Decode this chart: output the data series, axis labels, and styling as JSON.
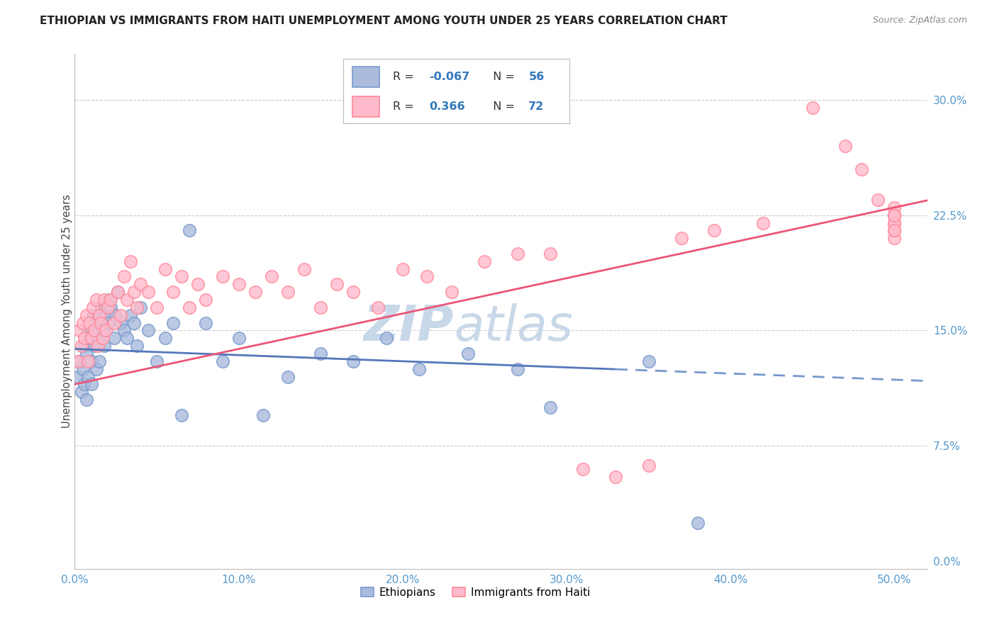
{
  "title": "ETHIOPIAN VS IMMIGRANTS FROM HAITI UNEMPLOYMENT AMONG YOUTH UNDER 25 YEARS CORRELATION CHART",
  "source": "Source: ZipAtlas.com",
  "ylabel": "Unemployment Among Youth under 25 years",
  "xlabel_ticks": [
    "0.0%",
    "10.0%",
    "20.0%",
    "30.0%",
    "40.0%",
    "50.0%"
  ],
  "xlabel_vals": [
    0.0,
    0.1,
    0.2,
    0.3,
    0.4,
    0.5
  ],
  "ylabel_ticks": [
    "0.0%",
    "7.5%",
    "15.0%",
    "22.5%",
    "30.0%"
  ],
  "ylabel_vals": [
    0.0,
    0.075,
    0.15,
    0.225,
    0.3
  ],
  "xlim": [
    0.0,
    0.52
  ],
  "ylim": [
    -0.005,
    0.33
  ],
  "legend_r_eth": "-0.067",
  "legend_n_eth": "56",
  "legend_r_hai": "0.366",
  "legend_n_hai": "72",
  "color_eth_face": "#AABBDD",
  "color_eth_edge": "#7799CC",
  "color_hai_face": "#FFBBCC",
  "color_hai_edge": "#FF8899",
  "trendline_eth_solid": "#5577BB",
  "trendline_eth_dash": "#7799CC",
  "trendline_hai": "#EE5577",
  "watermark_zip": "ZIP",
  "watermark_atlas": "atlas",
  "watermark_color": "#C8D8E8",
  "eth_x": [
    0.002,
    0.003,
    0.004,
    0.005,
    0.006,
    0.006,
    0.007,
    0.007,
    0.008,
    0.008,
    0.009,
    0.01,
    0.01,
    0.011,
    0.012,
    0.013,
    0.014,
    0.015,
    0.015,
    0.016,
    0.017,
    0.018,
    0.019,
    0.02,
    0.021,
    0.022,
    0.024,
    0.025,
    0.026,
    0.028,
    0.03,
    0.032,
    0.034,
    0.036,
    0.038,
    0.04,
    0.045,
    0.05,
    0.055,
    0.06,
    0.065,
    0.07,
    0.08,
    0.09,
    0.1,
    0.115,
    0.13,
    0.15,
    0.17,
    0.19,
    0.21,
    0.24,
    0.27,
    0.29,
    0.35,
    0.38
  ],
  "eth_y": [
    0.12,
    0.13,
    0.11,
    0.125,
    0.14,
    0.115,
    0.135,
    0.105,
    0.15,
    0.12,
    0.145,
    0.13,
    0.115,
    0.16,
    0.14,
    0.125,
    0.155,
    0.145,
    0.13,
    0.165,
    0.15,
    0.14,
    0.16,
    0.155,
    0.17,
    0.165,
    0.145,
    0.16,
    0.175,
    0.155,
    0.15,
    0.145,
    0.16,
    0.155,
    0.14,
    0.165,
    0.15,
    0.13,
    0.145,
    0.155,
    0.095,
    0.215,
    0.155,
    0.13,
    0.145,
    0.095,
    0.12,
    0.135,
    0.13,
    0.145,
    0.125,
    0.135,
    0.125,
    0.1,
    0.13,
    0.025
  ],
  "hai_x": [
    0.002,
    0.003,
    0.004,
    0.005,
    0.006,
    0.007,
    0.008,
    0.009,
    0.01,
    0.011,
    0.012,
    0.013,
    0.014,
    0.015,
    0.016,
    0.017,
    0.018,
    0.019,
    0.02,
    0.022,
    0.024,
    0.026,
    0.028,
    0.03,
    0.032,
    0.034,
    0.036,
    0.038,
    0.04,
    0.045,
    0.05,
    0.055,
    0.06,
    0.065,
    0.07,
    0.075,
    0.08,
    0.09,
    0.1,
    0.11,
    0.12,
    0.13,
    0.14,
    0.15,
    0.16,
    0.17,
    0.185,
    0.2,
    0.215,
    0.23,
    0.25,
    0.27,
    0.29,
    0.31,
    0.33,
    0.35,
    0.37,
    0.39,
    0.42,
    0.45,
    0.47,
    0.48,
    0.49,
    0.5,
    0.505,
    0.508,
    0.51,
    0.512,
    0.515,
    0.518,
    0.52,
    0.522
  ],
  "hai_y": [
    0.13,
    0.15,
    0.14,
    0.155,
    0.145,
    0.16,
    0.13,
    0.155,
    0.145,
    0.165,
    0.15,
    0.17,
    0.14,
    0.16,
    0.155,
    0.145,
    0.17,
    0.15,
    0.165,
    0.17,
    0.155,
    0.175,
    0.16,
    0.185,
    0.17,
    0.195,
    0.175,
    0.165,
    0.18,
    0.175,
    0.165,
    0.19,
    0.175,
    0.185,
    0.165,
    0.18,
    0.17,
    0.185,
    0.18,
    0.175,
    0.185,
    0.175,
    0.19,
    0.165,
    0.18,
    0.175,
    0.165,
    0.19,
    0.185,
    0.175,
    0.195,
    0.2,
    0.2,
    0.06,
    0.055,
    0.062,
    0.21,
    0.215,
    0.22,
    0.295,
    0.27,
    0.255,
    0.235,
    0.225,
    0.22,
    0.23,
    0.21,
    0.225,
    0.215,
    0.22,
    0.215,
    0.225
  ],
  "eth_trend_x0": 0.0,
  "eth_trend_x_solid_end": 0.33,
  "eth_trend_x1": 0.52,
  "hai_trend_x0": 0.0,
  "hai_trend_x1": 0.52
}
